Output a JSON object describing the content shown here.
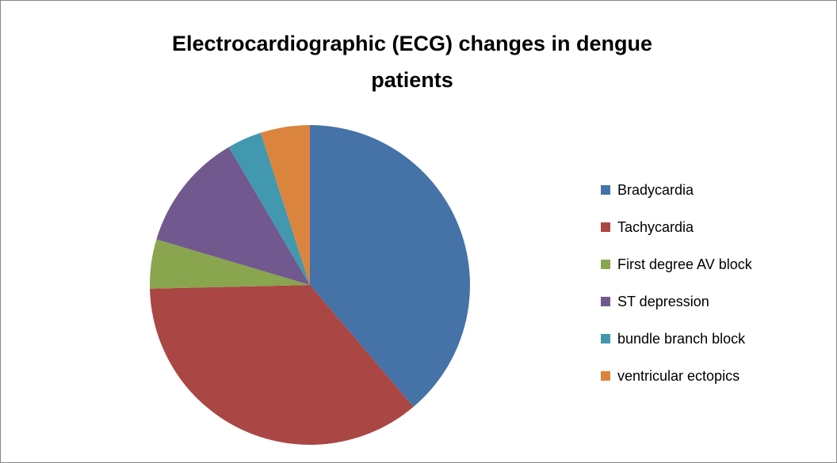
{
  "chart_data": {
    "type": "pie",
    "title": [
      "Electrocardiographic (ECG) changes in dengue",
      "patients"
    ],
    "categories": [
      "Bradycardia",
      "Tachycardia",
      "First degree AV block",
      "ST  depression",
      "bundle branch block",
      "ventricular ectopics"
    ],
    "values": [
      39,
      36,
      5,
      12,
      3.5,
      5
    ],
    "colors": [
      "#4572a7",
      "#aa4643",
      "#89a54e",
      "#71588f",
      "#4198af",
      "#db843d"
    ],
    "legend": "right"
  }
}
